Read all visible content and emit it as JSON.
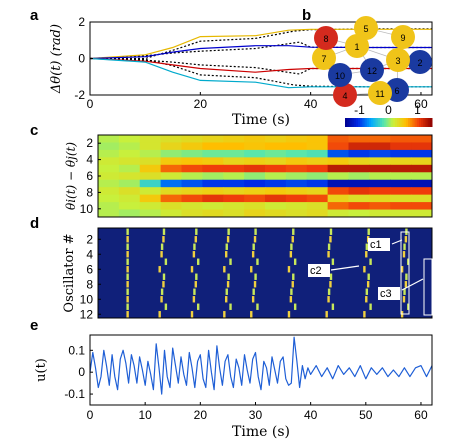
{
  "panel_labels": [
    "a",
    "b",
    "c",
    "d",
    "e"
  ],
  "chart_data": [
    {
      "panel": "a",
      "type": "line",
      "title": "",
      "xlabel": "Time (s)",
      "ylabel": "Δθ(t) (rad)",
      "xlim": [
        0,
        62
      ],
      "ylim": [
        -2,
        2
      ],
      "xticks": [
        0,
        20,
        40,
        60
      ],
      "yticks": [
        -2,
        0,
        2
      ],
      "series": [
        {
          "color": "#000000",
          "x": [
            0,
            10,
            15,
            20,
            30,
            37,
            40,
            50,
            62
          ],
          "values": [
            0,
            0,
            0.45,
            0.95,
            1.1,
            1.5,
            1.58,
            1.62,
            1.62
          ]
        },
        {
          "color": "#000000",
          "x": [
            0,
            10,
            15,
            20,
            30,
            38,
            40,
            50,
            62
          ],
          "values": [
            0,
            0.15,
            0.3,
            0.4,
            0.55,
            0.9,
            0.62,
            0.6,
            0.6
          ]
        },
        {
          "color": "#000000",
          "x": [
            0,
            10,
            15,
            20,
            30,
            38,
            40,
            50,
            62
          ],
          "values": [
            0,
            -0.1,
            -0.2,
            -0.35,
            -0.5,
            -0.85,
            -0.55,
            -0.55,
            -0.55
          ]
        },
        {
          "color": "#000000",
          "x": [
            0,
            10,
            15,
            20,
            30,
            37,
            40,
            50,
            62
          ],
          "values": [
            0,
            -0.05,
            -0.4,
            -0.9,
            -1.05,
            -1.45,
            -1.52,
            -1.55,
            -1.55
          ]
        },
        {
          "color": "#e6b800",
          "x": [
            0,
            10,
            15,
            20,
            30,
            36,
            40,
            50,
            62
          ],
          "values": [
            0,
            0.2,
            0.6,
            1.2,
            1.25,
            1.55,
            1.6,
            1.6,
            1.6
          ]
        },
        {
          "color": "#0000cc",
          "x": [
            0,
            10,
            15,
            20,
            30,
            36,
            40,
            50,
            62
          ],
          "values": [
            0,
            0.1,
            0.35,
            0.55,
            0.7,
            0.7,
            0.62,
            0.6,
            0.6
          ]
        },
        {
          "color": "#cc0000",
          "x": [
            0,
            10,
            15,
            20,
            30,
            36,
            40,
            50,
            62
          ],
          "values": [
            0,
            -0.15,
            -0.35,
            -0.55,
            -0.75,
            -0.6,
            -0.55,
            -0.55,
            -0.55
          ]
        },
        {
          "color": "#00aacc",
          "x": [
            0,
            10,
            15,
            20,
            30,
            36,
            40,
            50,
            62
          ],
          "values": [
            0,
            -0.2,
            -0.75,
            -1.2,
            -1.3,
            -1.6,
            -1.55,
            -1.55,
            -1.55
          ]
        }
      ]
    },
    {
      "panel": "b",
      "type": "network",
      "nodes": [
        {
          "label": "1",
          "color": "#f0c419"
        },
        {
          "label": "2",
          "color": "#1a3aa0"
        },
        {
          "label": "3",
          "color": "#f0c419"
        },
        {
          "label": "4",
          "color": "#d42a1e"
        },
        {
          "label": "5",
          "color": "#f0c419"
        },
        {
          "label": "6",
          "color": "#1a3aa0"
        },
        {
          "label": "7",
          "color": "#f0c419"
        },
        {
          "label": "8",
          "color": "#d42a1e"
        },
        {
          "label": "9",
          "color": "#f0c419"
        },
        {
          "label": "10",
          "color": "#1a3aa0"
        },
        {
          "label": "11",
          "color": "#f0c419"
        },
        {
          "label": "12",
          "color": "#1a3aa0"
        }
      ]
    },
    {
      "panel": "c",
      "type": "heatmap",
      "ylabel": "θi(t) − θj(t)",
      "yticks": [
        2,
        4,
        6,
        8,
        10
      ],
      "ylim": [
        1,
        11
      ],
      "colorbar": {
        "ticks": [
          -1,
          0,
          1
        ],
        "range": [
          -1.5,
          1.5
        ]
      },
      "rows": [
        [
          0.1,
          0.15,
          0.25,
          0.3,
          0.35,
          0.4,
          0.45,
          0.5,
          0.45,
          0.5,
          0.55,
          0.95,
          0.9,
          0.9,
          0.95,
          0.95
        ],
        [
          0.05,
          0.1,
          0.25,
          0.4,
          0.5,
          0.6,
          0.6,
          0.55,
          0.6,
          0.6,
          0.55,
          1.0,
          1.2,
          1.2,
          1.1,
          1.1
        ],
        [
          0.1,
          0.15,
          0.1,
          0.0,
          -0.05,
          -0.1,
          -0.1,
          -0.15,
          -0.1,
          -0.15,
          -0.2,
          -0.9,
          -1.0,
          -0.95,
          -1.0,
          -1.0
        ],
        [
          0.2,
          0.25,
          0.3,
          0.5,
          0.55,
          0.5,
          0.4,
          0.45,
          0.4,
          0.5,
          0.45,
          0.5,
          0.4,
          0.35,
          0.4,
          0.4
        ],
        [
          0.15,
          0.1,
          0.5,
          0.9,
          1.0,
          1.05,
          1.05,
          1.1,
          1.05,
          1.0,
          1.05,
          1.3,
          1.3,
          1.3,
          1.3,
          1.3
        ],
        [
          0.2,
          0.25,
          0.3,
          0.2,
          0.1,
          0.05,
          0.1,
          0.0,
          0.1,
          0.05,
          0.0,
          0.1,
          0.05,
          0.1,
          0.1,
          0.1
        ],
        [
          0.1,
          0.05,
          -0.3,
          -0.8,
          -0.9,
          -1.0,
          -1.0,
          -1.05,
          -1.0,
          -0.95,
          -1.0,
          -1.3,
          -1.3,
          -1.3,
          -1.3,
          -1.3
        ],
        [
          0.2,
          0.3,
          0.2,
          0.35,
          0.4,
          0.45,
          0.4,
          0.45,
          0.5,
          0.45,
          0.4,
          1.0,
          1.1,
          1.05,
          1.05,
          1.05
        ],
        [
          0.15,
          0.2,
          0.5,
          0.9,
          1.0,
          1.1,
          1.05,
          1.0,
          1.1,
          1.05,
          1.0,
          0.4,
          0.3,
          0.35,
          0.3,
          0.3
        ],
        [
          0.1,
          0.15,
          0.2,
          0.3,
          0.25,
          0.2,
          0.25,
          0.3,
          0.2,
          0.25,
          0.3,
          0.9,
          1.0,
          0.95,
          1.0,
          1.0
        ],
        [
          0.1,
          0.05,
          0.1,
          0.2,
          0.3,
          0.35,
          0.3,
          0.4,
          0.35,
          0.3,
          0.35,
          0.2,
          0.15,
          0.2,
          0.2,
          0.2
        ]
      ]
    },
    {
      "panel": "d",
      "type": "raster",
      "ylabel": "Oscillator #",
      "yticks": [
        2,
        4,
        6,
        8,
        10,
        12
      ],
      "ylim": [
        0.5,
        12.5
      ],
      "xlim": [
        0,
        62
      ],
      "event_times": [
        5.5,
        12,
        18,
        24,
        29,
        36,
        43,
        50,
        57
      ],
      "annotations": [
        "c1",
        "c2",
        "c3"
      ]
    },
    {
      "panel": "e",
      "type": "line",
      "xlabel": "Time (s)",
      "ylabel": "u(t)",
      "xlim": [
        0,
        62
      ],
      "ylim": [
        -0.15,
        0.17
      ],
      "xticks": [
        0,
        10,
        20,
        30,
        40,
        50,
        60
      ],
      "yticks": [
        -0.1,
        0,
        0.1
      ],
      "series": [
        {
          "color": "#1f5fd6",
          "x": [
            0,
            0.5,
            1,
            1.5,
            2,
            2.5,
            3,
            3.5,
            4,
            4.5,
            5,
            5.5,
            6,
            6.5,
            7,
            7.5,
            8,
            8.5,
            9,
            9.5,
            10,
            10.5,
            11,
            11.5,
            12,
            12.5,
            13,
            13.5,
            14,
            14.5,
            15,
            15.5,
            16,
            16.5,
            17,
            17.5,
            18,
            18.5,
            19,
            19.5,
            20,
            20.5,
            21,
            21.5,
            22,
            22.5,
            23,
            23.5,
            24,
            24.5,
            25,
            25.5,
            26,
            26.5,
            27,
            27.5,
            28,
            28.5,
            29,
            29.5,
            30,
            30.5,
            31,
            31.5,
            32,
            32.5,
            33,
            33.5,
            34,
            34.5,
            35,
            35.5,
            36,
            36.5,
            37,
            37.5,
            38,
            38.5,
            39,
            39.5,
            40,
            41,
            42,
            43,
            44,
            45,
            46,
            47,
            48,
            49,
            50,
            51,
            52,
            53,
            54,
            55,
            56,
            57,
            58,
            59,
            60,
            61,
            62
          ],
          "values": [
            0.0,
            0.09,
            0.02,
            -0.07,
            -0.02,
            0.1,
            0.03,
            -0.06,
            0.08,
            -0.02,
            -0.08,
            0.06,
            0.1,
            0.04,
            -0.05,
            0.08,
            0.03,
            -0.05,
            0.07,
            0.01,
            -0.06,
            0.05,
            -0.01,
            -0.08,
            0.13,
            0.02,
            -0.1,
            0.1,
            -0.02,
            -0.07,
            0.11,
            0.03,
            -0.05,
            0.07,
            -0.01,
            -0.06,
            0.09,
            0.02,
            -0.07,
            0.05,
            0.08,
            -0.03,
            -0.07,
            0.1,
            0.0,
            -0.08,
            0.12,
            0.02,
            -0.06,
            0.05,
            0.08,
            -0.02,
            -0.07,
            0.06,
            0.02,
            -0.06,
            0.08,
            0.01,
            -0.05,
            0.06,
            0.09,
            -0.02,
            -0.08,
            0.05,
            0.02,
            -0.06,
            0.07,
            0.01,
            -0.05,
            0.05,
            0.07,
            -0.03,
            -0.06,
            -0.05,
            0.16,
            0.05,
            -0.07,
            0.03,
            -0.03,
            0.02,
            -0.01,
            0.03,
            -0.02,
            0.02,
            -0.03,
            0.03,
            -0.01,
            0.02,
            -0.02,
            0.03,
            -0.03,
            0.02,
            -0.01,
            0.02,
            -0.02,
            0.01,
            -0.02,
            0.02,
            -0.02,
            0.02,
            0.03,
            -0.02,
            0.03
          ]
        }
      ]
    }
  ]
}
